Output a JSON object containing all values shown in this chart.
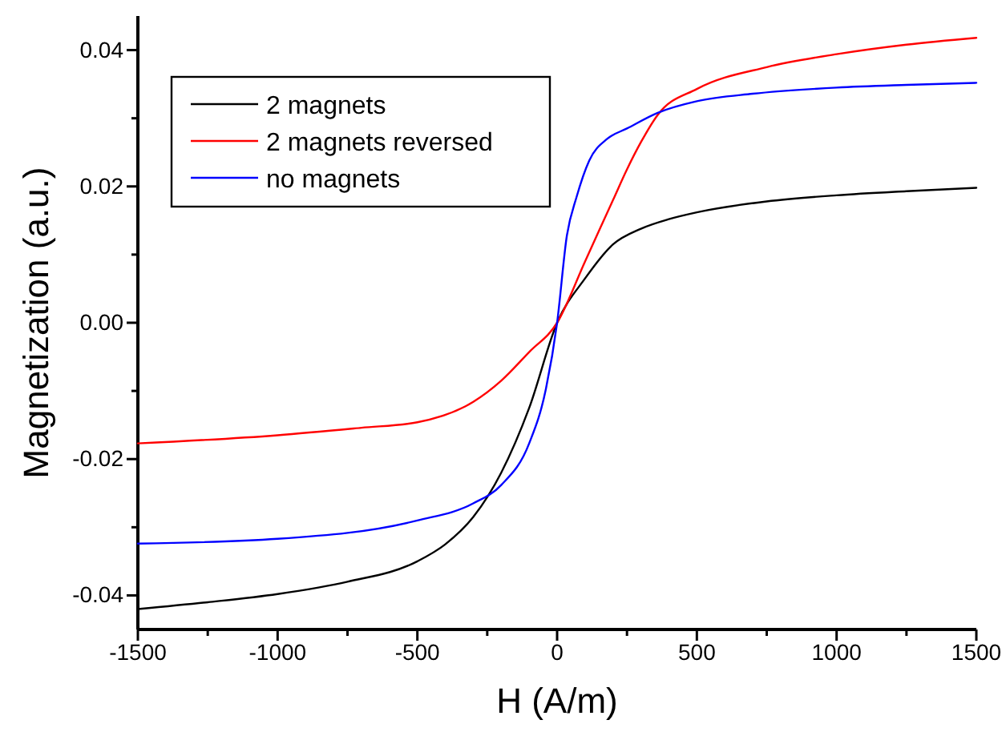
{
  "chart_data": {
    "type": "line",
    "xlabel": "H (A/m)",
    "ylabel": "Magnetization (a.u.)",
    "xlim": [
      -1500,
      1500
    ],
    "ylim": [
      -0.045,
      0.045
    ],
    "xticks": [
      -1500,
      {
        "value": -1250,
        "label": null
      },
      -1000,
      {
        "value": -750,
        "label": null
      },
      -500,
      {
        "value": -250,
        "label": null
      },
      0,
      {
        "value": 250,
        "label": null
      },
      500,
      {
        "value": 750,
        "label": null
      },
      1000,
      {
        "value": 1250,
        "label": null
      },
      1500
    ],
    "yticks": [
      {
        "value": -0.04,
        "label": "-0.04"
      },
      {
        "value": -0.03,
        "label": null
      },
      {
        "value": -0.02,
        "label": "-0.02"
      },
      {
        "value": -0.01,
        "label": null
      },
      {
        "value": 0,
        "label": "0.00"
      },
      {
        "value": 0.01,
        "label": null
      },
      {
        "value": 0.02,
        "label": "0.02"
      },
      {
        "value": 0.03,
        "label": null
      },
      {
        "value": 0.04,
        "label": "0.04"
      }
    ],
    "grid": false,
    "legend": "top left",
    "marker": "none",
    "line_style": "solid",
    "series": [
      {
        "name": "2 magnets",
        "color": "#000000",
        "x": [
          -1500,
          -1250,
          -1000,
          -750,
          -500,
          -400,
          -300,
          -200,
          -100,
          0,
          100,
          200,
          300,
          400,
          500,
          750,
          1000,
          1250,
          1500
        ],
        "values": [
          -0.042,
          -0.041,
          -0.0398,
          -0.038,
          -0.035,
          -0.0325,
          -0.0285,
          -0.022,
          -0.0125,
          0,
          0.0065,
          0.0115,
          0.0138,
          0.0152,
          0.0162,
          0.0178,
          0.0187,
          0.0193,
          0.0198
        ]
      },
      {
        "name": "2 magnets reversed",
        "color": "#ff0000",
        "x": [
          -1500,
          -1000,
          -700,
          -500,
          -300,
          -200,
          -100,
          0,
          100,
          200,
          250,
          300,
          360,
          500,
          750,
          1000,
          1250,
          1500
        ],
        "values": [
          -0.0177,
          -0.0165,
          -0.0154,
          -0.0146,
          -0.0116,
          -0.0085,
          -0.0043,
          0,
          0.009,
          0.018,
          0.0225,
          0.0265,
          0.0305,
          0.0343,
          0.0375,
          0.0394,
          0.0408,
          0.0418
        ]
      },
      {
        "name": "no magnets",
        "color": "#0000ff",
        "x": [
          -1500,
          -1000,
          -500,
          -300,
          -200,
          -100,
          -40,
          0,
          35,
          70,
          115,
          180,
          250,
          360,
          500,
          700,
          1000,
          1250,
          1500
        ],
        "values": [
          -0.0324,
          -0.0317,
          -0.029,
          -0.0265,
          -0.0238,
          -0.0177,
          -0.0097,
          0,
          0.0128,
          0.0185,
          0.0238,
          0.027,
          0.0285,
          0.0308,
          0.0325,
          0.0336,
          0.0345,
          0.0349,
          0.0352
        ]
      }
    ]
  }
}
